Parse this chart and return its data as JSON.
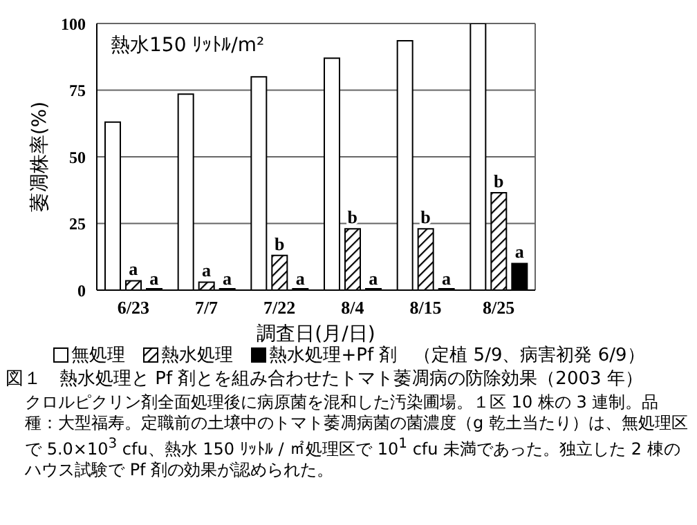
{
  "chart_data": {
    "type": "bar",
    "title": "図１　熱水処理と Pf 剤とを組み合わせたトマト萎凋病の防除効果（2003 年）",
    "xlabel": "調査日(月/日)",
    "ylabel": "萎凋株率(%)",
    "categories": [
      "6/23",
      "7/7",
      "7/22",
      "8/4",
      "8/15",
      "8/25"
    ],
    "series": [
      {
        "name": "無処理",
        "color": "#ffffff",
        "values": [
          63,
          73.5,
          80,
          87,
          93.5,
          100
        ]
      },
      {
        "name": "熱水処理",
        "color": "#000000",
        "values": [
          3.5,
          3,
          13,
          23,
          23,
          36.5
        ],
        "value_labels": [
          "a",
          "a",
          "b",
          "b",
          "b",
          "b"
        ]
      },
      {
        "name": "熱水処理+Pf 剤",
        "color": "#000000",
        "values": [
          0,
          0,
          0,
          0,
          0,
          10
        ],
        "value_labels": [
          "a",
          "a",
          "a",
          "a",
          "a",
          "a"
        ]
      }
    ],
    "ylim": [
      0,
      100
    ],
    "yticks": [
      0,
      25,
      50,
      75,
      100
    ],
    "grid": "y",
    "legend": "bottom",
    "annotations": [
      "熱水150 ﾘｯﾄﾙ/m²",
      "（定植 5/9、病害初発 6/9）",
      "クロルピクリン剤全面処理後に病原菌を混和した汚染圃場。１区 10 株の 3 連制。品種：大型福寿。定職前の土壌中のトマト萎凋病菌の菌濃度（g 乾土当たり）は、無処理区で 5.0×10$^{3}$ cfu、熱水 150 ﾘｯﾄﾙ / ㎡処理区で 10$^{1}$ cfu 未満であった。独立した 2 棟のハウス試験で Pf 剤の効果が認められた。"
    ]
  }
}
